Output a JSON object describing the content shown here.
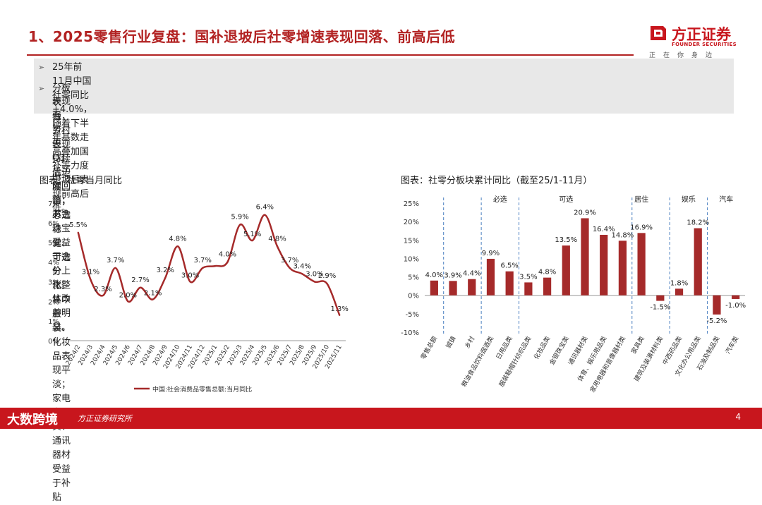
{
  "header": {
    "title": "1、2025零售行业复盘：国补退坡后社零增速表现回落、前高后低",
    "logo_cn": "方正证券",
    "logo_en": "FOUNDER SECURITIES",
    "logo_slogan": "正在你身边"
  },
  "bullets": [
    {
      "icon": "arrow-bullet-icon",
      "line1": "25年前11月中国社零同比+4.0%，随着下半年基数走高叠加国补等力度退坡后表现前高后低。",
      "line2": ""
    },
    {
      "icon": "arrow-bullet-icon",
      "line1": "分板块看，乡村表现持续优于城镇；必选稳健、可选分化。其中服装、化妆品表现平淡；家电家具、通讯器材受益于补贴",
      "line2": "表现强势，但Q3后边际回落；黄金珠宝受益于金价上涨整体改善明显。"
    }
  ],
  "footer": {
    "brand": "大数跨境",
    "source": "方正证券研究所",
    "page": "4"
  },
  "colors": {
    "accent": "#b22222",
    "bar": "#a52a2a",
    "line": "#a52a2a"
  },
  "chart_data": [
    {
      "type": "line",
      "title": "图表：社零当月同比",
      "categories": [
        "2024/2",
        "2024/3",
        "2024/4",
        "2024/5",
        "2024/6",
        "2024/7",
        "2024/8",
        "2024/9",
        "2024/10",
        "2024/11",
        "2024/12",
        "2025/1",
        "2025/2",
        "2025/3",
        "2025/4",
        "2025/5",
        "2025/6",
        "2025/7",
        "2025/8",
        "2025/9",
        "2025/10",
        "2025/11"
      ],
      "series": [
        {
          "name": "中国:社会消费品零售总额:当月同比",
          "values": [
            5.5,
            3.1,
            2.3,
            3.7,
            2.0,
            2.7,
            2.1,
            3.2,
            4.8,
            3.0,
            3.7,
            3.8,
            4.0,
            5.9,
            5.1,
            6.4,
            4.8,
            3.7,
            3.4,
            3.0,
            2.9,
            1.3
          ]
        }
      ],
      "data_labels": [
        "5.5%",
        "3.1%",
        "2.3%",
        "3.7%",
        "2.0%",
        "2.7%",
        "2.1%",
        "3.2%",
        "4.8%",
        "3.0%",
        "3.7%",
        "",
        "4.0%",
        "5.9%",
        "5.1%",
        "6.4%",
        "4.8%",
        "3.7%",
        "3.4%",
        "3.0%",
        "2.9%",
        "1.3%"
      ],
      "ylim": [
        0,
        7
      ],
      "yticks": [
        "0%",
        "1%",
        "2%",
        "3%",
        "4%",
        "5%",
        "6%",
        "7%"
      ],
      "legend_position": "bottom",
      "grid": false
    },
    {
      "type": "bar",
      "title": "图表：社零分板块累计同比（截至25/1-11月）",
      "categories": [
        "零售总额",
        "城镇",
        "乡村",
        "粮油食品饮料烟酒类",
        "日用品类",
        "服装鞋帽针纺织品类",
        "化妆品类",
        "金银珠宝类",
        "通讯器材类",
        "体育、娱乐用品类",
        "家用电器和音像器材类",
        "家具类",
        "建筑及装潢材料类",
        "中西药品类",
        "文化办公用品类",
        "石油及制品类",
        "汽车类"
      ],
      "values": [
        4.0,
        3.9,
        4.4,
        9.9,
        6.5,
        3.5,
        4.8,
        13.5,
        20.9,
        16.4,
        14.8,
        16.9,
        -1.5,
        1.8,
        18.2,
        -5.2,
        -1.0
      ],
      "data_labels": [
        "4.0%",
        "3.9%",
        "4.4%",
        "9.9%",
        "6.5%",
        "3.5%",
        "4.8%",
        "13.5%",
        "20.9%",
        "16.4%",
        "14.8%",
        "16.9%",
        "-1.5%",
        "1.8%",
        "18.2%",
        "-5.2%",
        "-1.0%"
      ],
      "groups": [
        "必选",
        "可选",
        "居住",
        "娱乐",
        "汽车"
      ],
      "ylim": [
        -10,
        25
      ],
      "yticks": [
        "-10%",
        "-5%",
        "0%",
        "5%",
        "10%",
        "15%",
        "20%",
        "25%"
      ],
      "grid": false
    }
  ]
}
